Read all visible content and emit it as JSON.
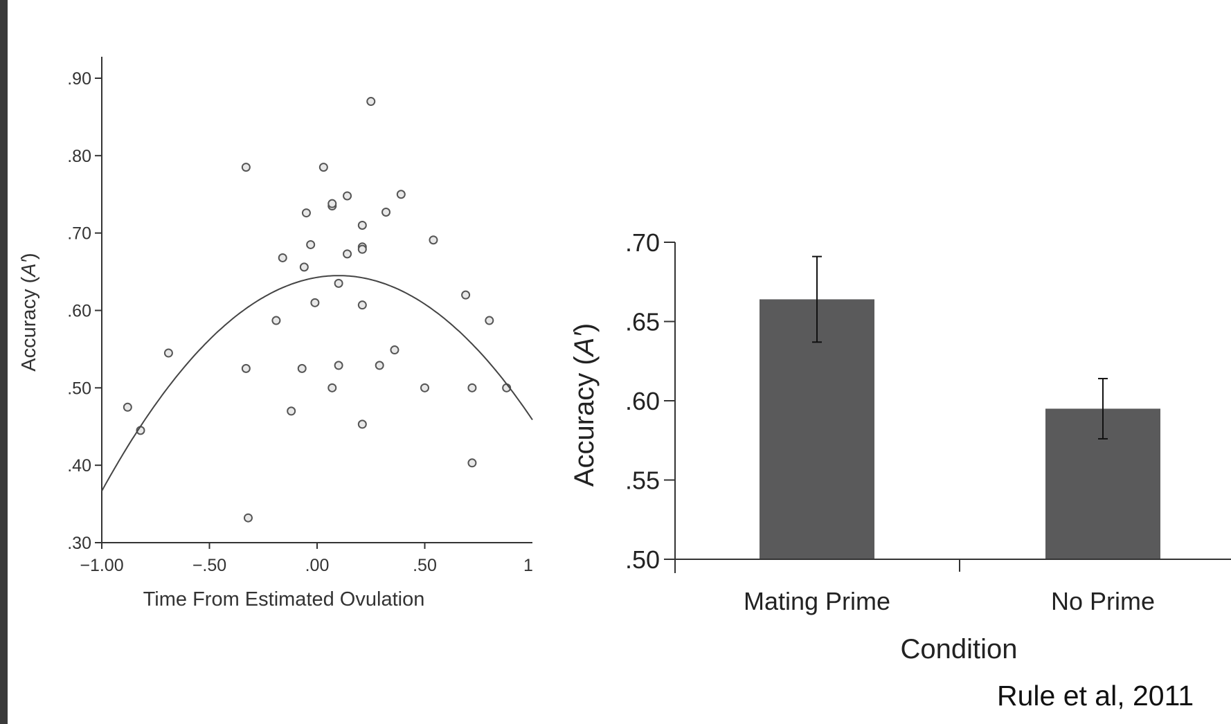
{
  "citation": "Rule et al, 2011",
  "chart_data": [
    {
      "type": "scatter",
      "xlabel": "Time From Estimated Ovulation",
      "ylabel_prefix": "Accuracy (",
      "ylabel_var": "A′",
      "ylabel_suffix": ")",
      "xlim": [
        -1.0,
        1.0
      ],
      "ylim": [
        0.3,
        0.9
      ],
      "x_ticks": [
        {
          "value": -1.0,
          "label": "−1.00"
        },
        {
          "value": -0.5,
          "label": "−.50"
        },
        {
          "value": 0.0,
          "label": ".00"
        },
        {
          "value": 0.5,
          "label": ".50"
        },
        {
          "value": 1.0,
          "label": "1"
        }
      ],
      "y_ticks": [
        {
          "value": 0.3,
          "label": ".30"
        },
        {
          "value": 0.4,
          "label": ".40"
        },
        {
          "value": 0.5,
          "label": ".50"
        },
        {
          "value": 0.6,
          "label": ".60"
        },
        {
          "value": 0.7,
          "label": ".70"
        },
        {
          "value": 0.8,
          "label": ".80"
        },
        {
          "value": 0.9,
          "label": ".90"
        }
      ],
      "points": [
        {
          "x": -0.88,
          "y": 0.475
        },
        {
          "x": -0.82,
          "y": 0.445
        },
        {
          "x": -0.69,
          "y": 0.545
        },
        {
          "x": -0.33,
          "y": 0.785
        },
        {
          "x": -0.33,
          "y": 0.525
        },
        {
          "x": -0.32,
          "y": 0.332
        },
        {
          "x": -0.19,
          "y": 0.587
        },
        {
          "x": -0.16,
          "y": 0.668
        },
        {
          "x": -0.12,
          "y": 0.47
        },
        {
          "x": -0.07,
          "y": 0.525
        },
        {
          "x": -0.06,
          "y": 0.656
        },
        {
          "x": -0.05,
          "y": 0.726
        },
        {
          "x": -0.03,
          "y": 0.685
        },
        {
          "x": -0.01,
          "y": 0.61
        },
        {
          "x": 0.03,
          "y": 0.785
        },
        {
          "x": 0.07,
          "y": 0.735
        },
        {
          "x": 0.07,
          "y": 0.738
        },
        {
          "x": 0.07,
          "y": 0.5
        },
        {
          "x": 0.1,
          "y": 0.635
        },
        {
          "x": 0.1,
          "y": 0.529
        },
        {
          "x": 0.14,
          "y": 0.748
        },
        {
          "x": 0.14,
          "y": 0.673
        },
        {
          "x": 0.21,
          "y": 0.71
        },
        {
          "x": 0.21,
          "y": 0.682
        },
        {
          "x": 0.21,
          "y": 0.679
        },
        {
          "x": 0.21,
          "y": 0.607
        },
        {
          "x": 0.21,
          "y": 0.453
        },
        {
          "x": 0.25,
          "y": 0.87
        },
        {
          "x": 0.29,
          "y": 0.529
        },
        {
          "x": 0.32,
          "y": 0.727
        },
        {
          "x": 0.36,
          "y": 0.549
        },
        {
          "x": 0.39,
          "y": 0.75
        },
        {
          "x": 0.5,
          "y": 0.5
        },
        {
          "x": 0.54,
          "y": 0.691
        },
        {
          "x": 0.69,
          "y": 0.62
        },
        {
          "x": 0.72,
          "y": 0.5
        },
        {
          "x": 0.72,
          "y": 0.403
        },
        {
          "x": 0.8,
          "y": 0.587
        },
        {
          "x": 0.88,
          "y": 0.5
        }
      ],
      "fit_curve": {
        "type": "quadratic",
        "vertex_x": 0.1,
        "vertex_y": 0.645,
        "a": -0.23
      }
    },
    {
      "type": "bar",
      "categories": [
        "Mating Prime",
        "No Prime"
      ],
      "values": [
        0.664,
        0.595
      ],
      "error": [
        0.027,
        0.019
      ],
      "bar_color": "#5a5a5b",
      "xlabel": "Condition",
      "ylabel_prefix": "Accuracy (",
      "ylabel_var": "A′",
      "ylabel_suffix": ")",
      "ylim": [
        0.5,
        0.7
      ],
      "y_ticks": [
        {
          "value": 0.5,
          "label": ".50"
        },
        {
          "value": 0.55,
          "label": ".55"
        },
        {
          "value": 0.6,
          "label": ".60"
        },
        {
          "value": 0.65,
          "label": ".65"
        },
        {
          "value": 0.7,
          "label": ".70"
        }
      ]
    }
  ]
}
